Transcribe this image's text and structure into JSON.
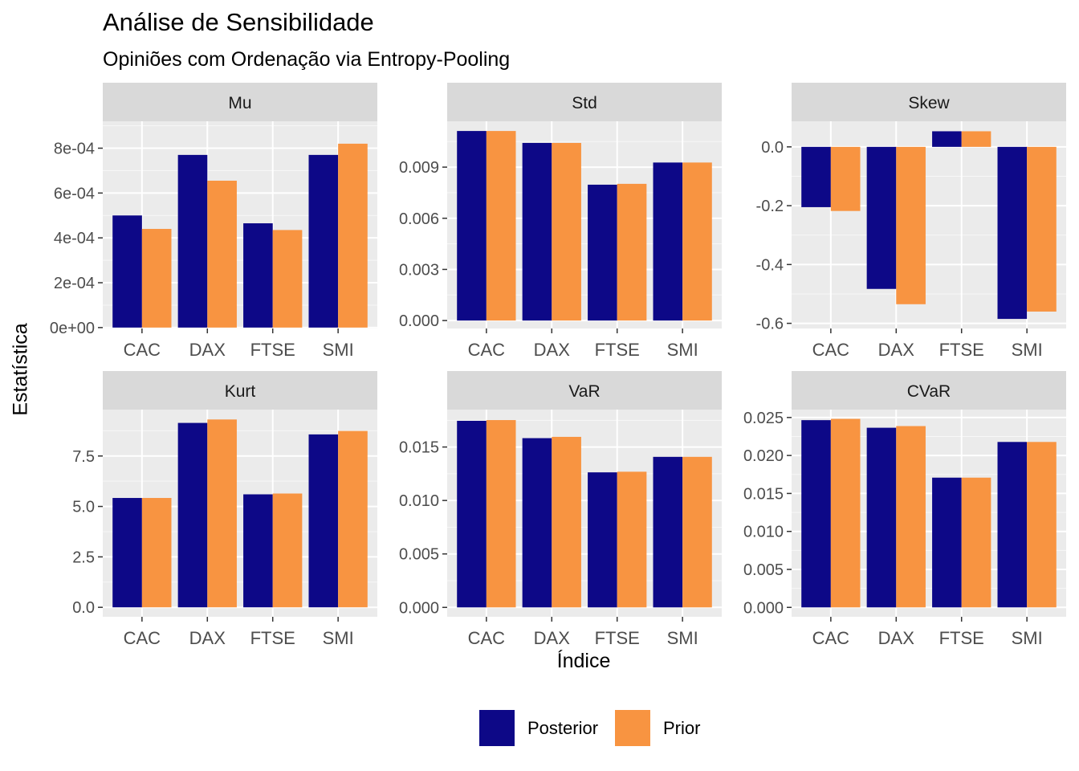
{
  "title": "Análise de Sensibilidade",
  "subtitle": "Opiniões com Ordenação via Entropy-Pooling",
  "legend": [
    {
      "name": "Posterior",
      "color": "#0d0887"
    },
    {
      "name": "Prior",
      "color": "#f89441"
    }
  ],
  "chart_data": {
    "type": "bar",
    "xlabel": "Índice",
    "ylabel": "Estatística",
    "categories": [
      "CAC",
      "DAX",
      "FTSE",
      "SMI"
    ],
    "legend_position": "bottom",
    "grid": true,
    "facets": [
      {
        "name": "Mu",
        "ylim": [
          -4.05e-06,
          0.00092
        ],
        "ticks": [
          0,
          0.0002,
          0.0004,
          0.0006,
          0.0008
        ],
        "tick_labels": [
          "0e+00",
          "2e-04",
          "4e-04",
          "6e-04",
          "8e-04"
        ],
        "series": [
          {
            "name": "Posterior",
            "values": [
              0.0005,
              0.00077,
              0.000465,
              0.00077
            ]
          },
          {
            "name": "Prior",
            "values": [
              0.00044,
              0.000655,
              0.000435,
              0.00082
            ]
          }
        ]
      },
      {
        "name": "Std",
        "ylim": [
          -0.000465,
          0.01169
        ],
        "ticks": [
          0,
          0.003,
          0.006,
          0.009
        ],
        "tick_labels": [
          "0.000",
          "0.003",
          "0.006",
          "0.009"
        ],
        "series": [
          {
            "name": "Posterior",
            "values": [
              0.01112,
              0.01042,
              0.00797,
              0.00927
            ]
          },
          {
            "name": "Prior",
            "values": [
              0.01112,
              0.01042,
              0.00802,
              0.00927
            ]
          }
        ]
      },
      {
        "name": "Skew",
        "ylim": [
          -0.6175,
          0.087
        ],
        "ticks": [
          -0.6,
          -0.4,
          -0.2,
          0
        ],
        "tick_labels": [
          "-0.6",
          "-0.4",
          "-0.2",
          "0.0"
        ],
        "series": [
          {
            "name": "Posterior",
            "values": [
              -0.205,
              -0.483,
              0.053,
              -0.585
            ]
          },
          {
            "name": "Prior",
            "values": [
              -0.218,
              -0.535,
              0.053,
              -0.56
            ]
          }
        ]
      },
      {
        "name": "Kurt",
        "ylim": [
          -0.47,
          9.8
        ],
        "ticks": [
          0,
          2.5,
          5,
          7.5
        ],
        "tick_labels": [
          "0.0",
          "2.5",
          "5.0",
          "7.5"
        ],
        "series": [
          {
            "name": "Posterior",
            "values": [
              5.42,
              9.14,
              5.6,
              8.57
            ]
          },
          {
            "name": "Prior",
            "values": [
              5.42,
              9.31,
              5.64,
              8.74
            ]
          }
        ]
      },
      {
        "name": "VaR",
        "ylim": [
          -0.00088,
          0.0185
        ],
        "ticks": [
          0,
          0.005,
          0.01,
          0.015
        ],
        "tick_labels": [
          "0.000",
          "0.005",
          "0.010",
          "0.015"
        ],
        "series": [
          {
            "name": "Posterior",
            "values": [
              0.01745,
              0.01583,
              0.01263,
              0.01408
            ]
          },
          {
            "name": "Prior",
            "values": [
              0.01752,
              0.01595,
              0.01269,
              0.01408
            ]
          }
        ]
      },
      {
        "name": "CVaR",
        "ylim": [
          -0.00124,
          0.02604
        ],
        "ticks": [
          0,
          0.005,
          0.01,
          0.015,
          0.02,
          0.025
        ],
        "tick_labels": [
          "0.000",
          "0.005",
          "0.010",
          "0.015",
          "0.020",
          "0.025"
        ],
        "series": [
          {
            "name": "Posterior",
            "values": [
              0.02465,
              0.02365,
              0.01708,
              0.02178
            ]
          },
          {
            "name": "Prior",
            "values": [
              0.02482,
              0.02387,
              0.01708,
              0.02178
            ]
          }
        ]
      }
    ]
  }
}
